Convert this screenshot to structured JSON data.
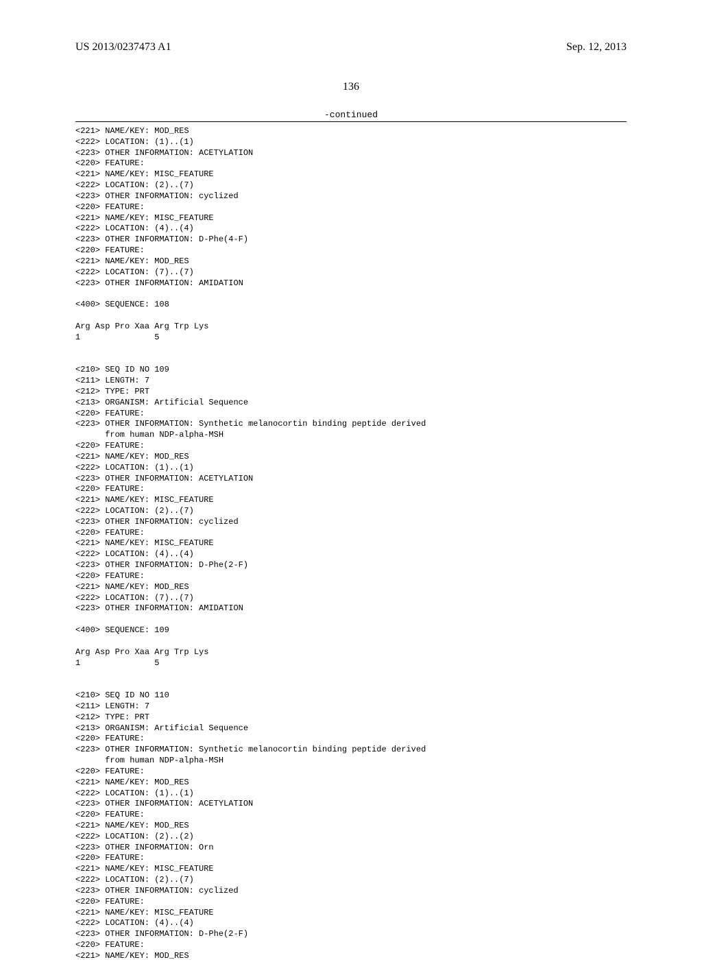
{
  "header": {
    "pubnum": "US 2013/0237473 A1",
    "date": "Sep. 12, 2013"
  },
  "pagenum": "136",
  "continued": "-continued",
  "seqtext": "<221> NAME/KEY: MOD_RES\n<222> LOCATION: (1)..(1)\n<223> OTHER INFORMATION: ACETYLATION\n<220> FEATURE:\n<221> NAME/KEY: MISC_FEATURE\n<222> LOCATION: (2)..(7)\n<223> OTHER INFORMATION: cyclized\n<220> FEATURE:\n<221> NAME/KEY: MISC_FEATURE\n<222> LOCATION: (4)..(4)\n<223> OTHER INFORMATION: D-Phe(4-F)\n<220> FEATURE:\n<221> NAME/KEY: MOD_RES\n<222> LOCATION: (7)..(7)\n<223> OTHER INFORMATION: AMIDATION\n\n<400> SEQUENCE: 108\n\nArg Asp Pro Xaa Arg Trp Lys\n1               5\n\n\n<210> SEQ ID NO 109\n<211> LENGTH: 7\n<212> TYPE: PRT\n<213> ORGANISM: Artificial Sequence\n<220> FEATURE:\n<223> OTHER INFORMATION: Synthetic melanocortin binding peptide derived\n      from human NDP-alpha-MSH\n<220> FEATURE:\n<221> NAME/KEY: MOD_RES\n<222> LOCATION: (1)..(1)\n<223> OTHER INFORMATION: ACETYLATION\n<220> FEATURE:\n<221> NAME/KEY: MISC_FEATURE\n<222> LOCATION: (2)..(7)\n<223> OTHER INFORMATION: cyclized\n<220> FEATURE:\n<221> NAME/KEY: MISC_FEATURE\n<222> LOCATION: (4)..(4)\n<223> OTHER INFORMATION: D-Phe(2-F)\n<220> FEATURE:\n<221> NAME/KEY: MOD_RES\n<222> LOCATION: (7)..(7)\n<223> OTHER INFORMATION: AMIDATION\n\n<400> SEQUENCE: 109\n\nArg Asp Pro Xaa Arg Trp Lys\n1               5\n\n\n<210> SEQ ID NO 110\n<211> LENGTH: 7\n<212> TYPE: PRT\n<213> ORGANISM: Artificial Sequence\n<220> FEATURE:\n<223> OTHER INFORMATION: Synthetic melanocortin binding peptide derived\n      from human NDP-alpha-MSH\n<220> FEATURE:\n<221> NAME/KEY: MOD_RES\n<222> LOCATION: (1)..(1)\n<223> OTHER INFORMATION: ACETYLATION\n<220> FEATURE:\n<221> NAME/KEY: MOD_RES\n<222> LOCATION: (2)..(2)\n<223> OTHER INFORMATION: Orn\n<220> FEATURE:\n<221> NAME/KEY: MISC_FEATURE\n<222> LOCATION: (2)..(7)\n<223> OTHER INFORMATION: cyclized\n<220> FEATURE:\n<221> NAME/KEY: MISC_FEATURE\n<222> LOCATION: (4)..(4)\n<223> OTHER INFORMATION: D-Phe(2-F)\n<220> FEATURE:\n<221> NAME/KEY: MOD_RES"
}
